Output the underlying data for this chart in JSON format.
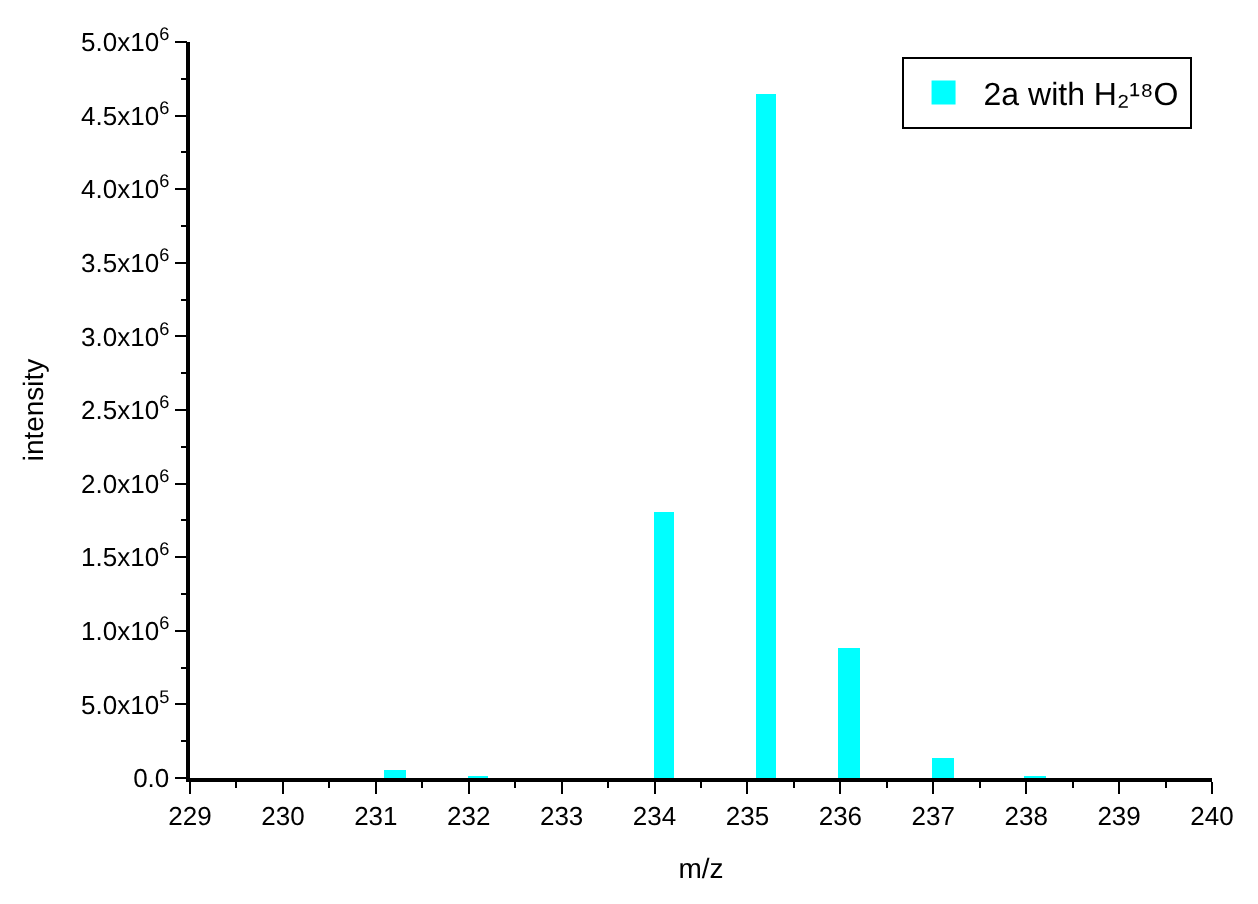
{
  "chart_data": {
    "type": "bar",
    "xlabel": "m/z",
    "ylabel": "intensity",
    "x": [
      231.2,
      232.1,
      234.1,
      235.2,
      236.1,
      237.1,
      238.1
    ],
    "series": [
      {
        "name": "2a with H₂¹⁸O",
        "color": "#00ffff",
        "values": [
          60000,
          10000,
          1810000,
          4650000,
          890000,
          130000,
          10000
        ]
      }
    ],
    "xlim": [
      229,
      240
    ],
    "xticks": [
      229,
      230,
      231,
      232,
      233,
      234,
      235,
      236,
      237,
      238,
      239,
      240
    ],
    "ylim": [
      0,
      5000000
    ],
    "yticks": [
      {
        "value": 0,
        "label": "0.0"
      },
      {
        "value": 500000,
        "label": "5.0x10$^{5}$"
      },
      {
        "value": 1000000,
        "label": "1.0x10$^{6}$"
      },
      {
        "value": 1500000,
        "label": "1.5x10$^{6}$"
      },
      {
        "value": 2000000,
        "label": "2.0x10$^{6}$"
      },
      {
        "value": 2500000,
        "label": "2.5x10$^{6}$"
      },
      {
        "value": 3000000,
        "label": "3.0x10$^{6}$"
      },
      {
        "value": 3500000,
        "label": "3.5x10$^{6}$"
      },
      {
        "value": 4000000,
        "label": "4.0x10$^{6}$"
      },
      {
        "value": 4500000,
        "label": "4.5x10$^{6}$"
      },
      {
        "value": 5000000,
        "label": "5.0x10$^{6}$"
      }
    ],
    "legend": "top right"
  }
}
